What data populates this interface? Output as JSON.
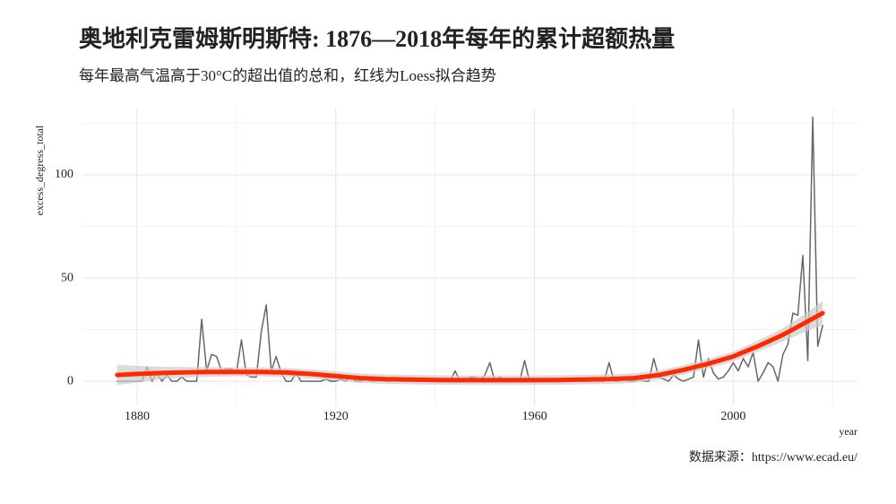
{
  "chart_data": {
    "type": "line",
    "title": "奥地利克雷姆斯明斯特: 1876—2018年每年的累计超额热量",
    "subtitle": "每年最高气温高于30°C的超出值的总和，红线为Loess拟合趋势",
    "x_label": "year",
    "y_label": "excess_degress_total",
    "caption": "数据来源：https://www.ecad.eu/",
    "x": [
      1876,
      1877,
      1878,
      1879,
      1880,
      1881,
      1882,
      1883,
      1884,
      1885,
      1886,
      1887,
      1888,
      1889,
      1890,
      1891,
      1892,
      1893,
      1894,
      1895,
      1896,
      1897,
      1898,
      1899,
      1900,
      1901,
      1902,
      1903,
      1904,
      1905,
      1906,
      1907,
      1908,
      1909,
      1910,
      1911,
      1912,
      1913,
      1914,
      1915,
      1916,
      1917,
      1918,
      1919,
      1920,
      1921,
      1922,
      1923,
      1924,
      1925,
      1926,
      1927,
      1928,
      1929,
      1930,
      1931,
      1932,
      1933,
      1934,
      1935,
      1936,
      1937,
      1938,
      1939,
      1940,
      1941,
      1942,
      1943,
      1944,
      1945,
      1946,
      1947,
      1948,
      1949,
      1950,
      1951,
      1952,
      1953,
      1954,
      1955,
      1956,
      1957,
      1958,
      1959,
      1960,
      1961,
      1962,
      1963,
      1964,
      1965,
      1966,
      1967,
      1968,
      1969,
      1970,
      1971,
      1972,
      1973,
      1974,
      1975,
      1976,
      1977,
      1978,
      1979,
      1980,
      1981,
      1982,
      1983,
      1984,
      1985,
      1986,
      1987,
      1988,
      1989,
      1990,
      1991,
      1992,
      1993,
      1994,
      1995,
      1996,
      1997,
      1998,
      1999,
      2000,
      2001,
      2002,
      2003,
      2004,
      2005,
      2006,
      2007,
      2008,
      2009,
      2010,
      2011,
      2012,
      2013,
      2014,
      2015,
      2016,
      2017,
      2018
    ],
    "series": [
      {
        "color": "#666666",
        "values": [
          0,
          0,
          0,
          0,
          0,
          0,
          7,
          0,
          4,
          0,
          3,
          0,
          0,
          2,
          0,
          0,
          0,
          30,
          5,
          13,
          12,
          5,
          6,
          6,
          4,
          20,
          3,
          2,
          2,
          24,
          37,
          5,
          12,
          4,
          0,
          0,
          4,
          0,
          0,
          0,
          0,
          0,
          1,
          0,
          0,
          1,
          0,
          2,
          0,
          0,
          1,
          0,
          0,
          1,
          0,
          0,
          2,
          0,
          0,
          1,
          0,
          0,
          1,
          0,
          0,
          0,
          1,
          0,
          5,
          0,
          0,
          2,
          2,
          0,
          3,
          9,
          0,
          2,
          0,
          0,
          1,
          0,
          10,
          0,
          0,
          1,
          0,
          0,
          0,
          1,
          0,
          0,
          1,
          0,
          0,
          0,
          2,
          0,
          0,
          9,
          0,
          0,
          1,
          0,
          0,
          1,
          0,
          0,
          11,
          2,
          1,
          0,
          3,
          1,
          0,
          1,
          2,
          20,
          2,
          11,
          4,
          1,
          2,
          5,
          9,
          5,
          11,
          7,
          14,
          0,
          4,
          9,
          7,
          0,
          13,
          18,
          33,
          32,
          61,
          10,
          128,
          17,
          27
        ]
      },
      {
        "color": "#ff2a00",
        "band_color": "#cccccc",
        "x": [
          1876,
          1880,
          1885,
          1890,
          1895,
          1900,
          1905,
          1910,
          1915,
          1920,
          1925,
          1930,
          1935,
          1940,
          1945,
          1950,
          1955,
          1960,
          1965,
          1970,
          1975,
          1980,
          1985,
          1990,
          1995,
          2000,
          2005,
          2010,
          2015,
          2018
        ],
        "values": [
          3,
          3.5,
          4,
          4.3,
          4.5,
          4.5,
          4.5,
          4.2,
          3.5,
          2.5,
          1.5,
          1,
          0.8,
          0.6,
          0.5,
          0.5,
          0.5,
          0.5,
          0.6,
          0.8,
          1,
          1.5,
          3,
          5.5,
          8.5,
          12,
          17,
          22.5,
          29,
          33
        ],
        "lower": [
          -2,
          -0.5,
          1,
          1.8,
          2.2,
          2.3,
          2.3,
          2,
          1.3,
          0.3,
          -0.8,
          -1.3,
          -1.5,
          -1.7,
          -1.8,
          -1.8,
          -1.8,
          -1.8,
          -1.7,
          -1.5,
          -1.3,
          -0.8,
          0.8,
          3.2,
          6.2,
          9.6,
          14.3,
          19.3,
          24.5,
          27
        ],
        "upper": [
          8,
          7.5,
          7,
          6.8,
          6.8,
          6.7,
          6.7,
          6.4,
          5.7,
          4.7,
          3.8,
          3.3,
          3.1,
          2.9,
          2.8,
          2.8,
          2.8,
          2.8,
          2.9,
          3.1,
          3.3,
          3.8,
          5.2,
          7.8,
          10.8,
          14.4,
          19.7,
          25.7,
          33.5,
          39
        ]
      }
    ],
    "xlim": [
      1869,
      2025
    ],
    "ylim": [
      -11.7,
      132.6
    ],
    "xticks": [
      1880,
      1920,
      1960,
      2000
    ],
    "yticks": [
      0,
      50,
      100
    ],
    "xminor": [
      1900,
      1940,
      1980,
      2020
    ],
    "yminor": [
      25,
      75,
      125
    ],
    "grid": true
  }
}
